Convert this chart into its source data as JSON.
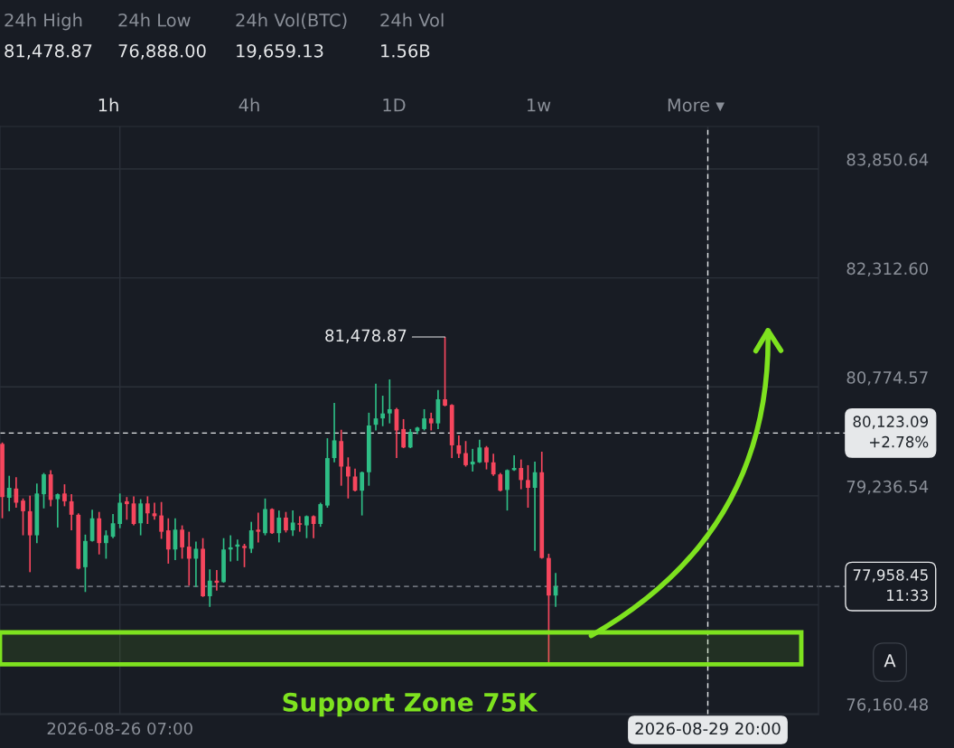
{
  "chart_data": {
    "type": "candlestick",
    "x": [
      "2026-08-25T14:00",
      "2026-08-25T15:00",
      "2026-08-25T16:00",
      "2026-08-25T17:00",
      "2026-08-25T18:00",
      "2026-08-25T19:00",
      "2026-08-25T20:00",
      "2026-08-25T21:00",
      "2026-08-25T22:00",
      "2026-08-25T23:00",
      "2026-08-26T00:00",
      "2026-08-26T01:00",
      "2026-08-26T02:00",
      "2026-08-26T03:00",
      "2026-08-26T04:00",
      "2026-08-26T05:00",
      "2026-08-26T06:00",
      "2026-08-26T07:00",
      "2026-08-26T08:00",
      "2026-08-26T09:00",
      "2026-08-26T10:00",
      "2026-08-26T11:00",
      "2026-08-26T12:00",
      "2026-08-26T13:00",
      "2026-08-26T14:00",
      "2026-08-26T15:00",
      "2026-08-26T16:00",
      "2026-08-26T17:00",
      "2026-08-26T18:00",
      "2026-08-26T19:00",
      "2026-08-26T20:00",
      "2026-08-26T21:00",
      "2026-08-26T22:00",
      "2026-08-26T23:00",
      "2026-08-27T00:00",
      "2026-08-27T01:00",
      "2026-08-27T02:00",
      "2026-08-27T03:00",
      "2026-08-27T04:00",
      "2026-08-27T05:00",
      "2026-08-27T06:00",
      "2026-08-27T07:00",
      "2026-08-27T08:00",
      "2026-08-27T09:00",
      "2026-08-27T10:00",
      "2026-08-27T11:00",
      "2026-08-27T12:00",
      "2026-08-27T13:00",
      "2026-08-27T14:00",
      "2026-08-27T15:00",
      "2026-08-27T16:00",
      "2026-08-27T17:00",
      "2026-08-27T18:00",
      "2026-08-27T19:00",
      "2026-08-27T20:00",
      "2026-08-27T21:00",
      "2026-08-27T22:00",
      "2026-08-27T23:00",
      "2026-08-28T00:00",
      "2026-08-28T01:00",
      "2026-08-28T02:00",
      "2026-08-28T03:00",
      "2026-08-28T04:00",
      "2026-08-28T05:00",
      "2026-08-28T06:00",
      "2026-08-28T07:00",
      "2026-08-28T08:00",
      "2026-08-28T09:00",
      "2026-08-28T10:00",
      "2026-08-28T11:00",
      "2026-08-28T12:00",
      "2026-08-28T13:00",
      "2026-08-28T14:00",
      "2026-08-28T15:00",
      "2026-08-28T16:00",
      "2026-08-28T17:00",
      "2026-08-28T18:00",
      "2026-08-28T19:00",
      "2026-08-28T20:00",
      "2026-08-28T21:00",
      "2026-08-28T22:00"
    ],
    "ohlc": [
      [
        79970,
        79990,
        78920,
        79220
      ],
      [
        79210,
        79520,
        79020,
        79350
      ],
      [
        79340,
        79500,
        79070,
        79140
      ],
      [
        79170,
        79200,
        78680,
        79020
      ],
      [
        79020,
        79240,
        78160,
        78680
      ],
      [
        78680,
        79410,
        78570,
        79270
      ],
      [
        79260,
        79560,
        79060,
        79540
      ],
      [
        79540,
        79600,
        79090,
        79180
      ],
      [
        79190,
        79270,
        78790,
        79260
      ],
      [
        79270,
        79400,
        79090,
        79160
      ],
      [
        79160,
        79260,
        78750,
        78970
      ],
      [
        78970,
        78990,
        78200,
        78210
      ],
      [
        78230,
        78690,
        77880,
        78600
      ],
      [
        78600,
        79040,
        78590,
        78920
      ],
      [
        78920,
        79010,
        78410,
        78570
      ],
      [
        78570,
        78750,
        78350,
        78680
      ],
      [
        78660,
        78980,
        78640,
        78850
      ],
      [
        78840,
        79270,
        78780,
        79140
      ],
      [
        79160,
        79220,
        78900,
        79120
      ],
      [
        79130,
        79230,
        78820,
        78840
      ],
      [
        78850,
        79190,
        78680,
        79130
      ],
      [
        79130,
        79230,
        78840,
        78990
      ],
      [
        78990,
        79140,
        78900,
        78950
      ],
      [
        78960,
        79150,
        78630,
        78730
      ],
      [
        78750,
        78920,
        78280,
        78480
      ],
      [
        78480,
        78920,
        78330,
        78760
      ],
      [
        78760,
        78820,
        78350,
        78510
      ],
      [
        78520,
        78730,
        77970,
        78350
      ],
      [
        78350,
        78590,
        77950,
        78490
      ],
      [
        78490,
        78640,
        77810,
        77820
      ],
      [
        77820,
        78200,
        77670,
        78040
      ],
      [
        78040,
        78190,
        77900,
        78010
      ],
      [
        78020,
        78640,
        78010,
        78480
      ],
      [
        78480,
        78680,
        78310,
        78510
      ],
      [
        78520,
        78620,
        78320,
        78550
      ],
      [
        78530,
        78560,
        78230,
        78500
      ],
      [
        78490,
        78870,
        78430,
        78750
      ],
      [
        78760,
        79000,
        78580,
        78730
      ],
      [
        78710,
        79200,
        78680,
        79050
      ],
      [
        79050,
        79060,
        78700,
        78710
      ],
      [
        78710,
        79030,
        78580,
        78930
      ],
      [
        78930,
        79010,
        78720,
        78750
      ],
      [
        78750,
        79030,
        78670,
        78860
      ],
      [
        78850,
        78950,
        78730,
        78830
      ],
      [
        78820,
        78960,
        78640,
        78950
      ],
      [
        78950,
        78960,
        78640,
        78840
      ],
      [
        78840,
        79140,
        78800,
        79120
      ],
      [
        79100,
        80050,
        79070,
        79770
      ],
      [
        79770,
        80550,
        79710,
        80020
      ],
      [
        80010,
        80170,
        79380,
        79650
      ],
      [
        79650,
        79780,
        79200,
        79510
      ],
      [
        79510,
        79620,
        79300,
        79310
      ],
      [
        79310,
        79580,
        78960,
        79570
      ],
      [
        79570,
        80410,
        79380,
        80230
      ],
      [
        80240,
        80820,
        80160,
        80330
      ],
      [
        80330,
        80650,
        80220,
        80400
      ],
      [
        80400,
        80880,
        80260,
        80460
      ],
      [
        80460,
        80480,
        79770,
        80160
      ],
      [
        80180,
        80320,
        79910,
        79920
      ],
      [
        79920,
        80180,
        79910,
        80140
      ],
      [
        80150,
        80210,
        80110,
        80200
      ],
      [
        80180,
        80460,
        80160,
        80330
      ],
      [
        80330,
        80410,
        80160,
        80260
      ],
      [
        80260,
        80730,
        80180,
        80600
      ],
      [
        80600,
        81478.87,
        80500,
        80510
      ],
      [
        80520,
        80530,
        79770,
        79950
      ],
      [
        79950,
        80090,
        79770,
        79830
      ],
      [
        79840,
        80010,
        79650,
        79670
      ],
      [
        79680,
        79900,
        79580,
        79720
      ],
      [
        79710,
        80030,
        79700,
        79920
      ],
      [
        79920,
        79940,
        79610,
        79710
      ],
      [
        79710,
        79830,
        79520,
        79540
      ],
      [
        79540,
        79560,
        79300,
        79310
      ],
      [
        79320,
        79610,
        79030,
        79600
      ],
      [
        79600,
        79810,
        79590,
        79630
      ],
      [
        79630,
        79750,
        79330,
        79460
      ],
      [
        79460,
        79670,
        79070,
        79350
      ],
      [
        79350,
        79720,
        78460,
        79570
      ],
      [
        79570,
        79860,
        78350,
        78360
      ],
      [
        78360,
        78420,
        76888,
        77830
      ],
      [
        77830,
        78150,
        77670,
        77958.45
      ]
    ],
    "colors": [
      "#f6465d",
      "#2ebd85",
      "#f6465d",
      "#f6465d",
      "#f6465d",
      "#2ebd85",
      "#2ebd85",
      "#f6465d",
      "#2ebd85",
      "#f6465d",
      "#f6465d",
      "#f6465d",
      "#2ebd85",
      "#2ebd85",
      "#f6465d",
      "#2ebd85",
      "#2ebd85",
      "#2ebd85",
      "#f6465d",
      "#f6465d",
      "#2ebd85",
      "#f6465d",
      "#f6465d",
      "#f6465d",
      "#f6465d",
      "#2ebd85",
      "#f6465d",
      "#f6465d",
      "#2ebd85",
      "#f6465d",
      "#2ebd85",
      "#f6465d",
      "#2ebd85",
      "#2ebd85",
      "#2ebd85",
      "#f6465d",
      "#2ebd85",
      "#f6465d",
      "#2ebd85",
      "#f6465d",
      "#2ebd85",
      "#f6465d",
      "#2ebd85",
      "#f6465d",
      "#2ebd85",
      "#f6465d",
      "#2ebd85",
      "#2ebd85",
      "#2ebd85",
      "#f6465d",
      "#f6465d",
      "#f6465d",
      "#2ebd85",
      "#2ebd85",
      "#2ebd85",
      "#2ebd85",
      "#2ebd85",
      "#f6465d",
      "#f6465d",
      "#2ebd85",
      "#2ebd85",
      "#2ebd85",
      "#f6465d",
      "#2ebd85",
      "#f6465d",
      "#f6465d",
      "#f6465d",
      "#f6465d",
      "#2ebd85",
      "#2ebd85",
      "#f6465d",
      "#f6465d",
      "#f6465d",
      "#2ebd85",
      "#2ebd85",
      "#f6465d",
      "#f6465d",
      "#2ebd85",
      "#f6465d",
      "#f6465d",
      "#2ebd85"
    ],
    "xlim": [
      "2026-08-25T13:40",
      "2026-08-30T12:00"
    ],
    "xticks": [
      {
        "value": "2026-08-26T07:00",
        "label": "2026-08-26 07:00"
      },
      {
        "value": "2026-08-29T20:00",
        "label": "2026-08-29 20:00"
      }
    ],
    "ylim": [
      76150,
      84450
    ],
    "yticks": [
      {
        "value": 76160.48,
        "label": "76,160.48"
      },
      {
        "value": 77698.51,
        "label": null
      },
      {
        "value": 79236.54,
        "label": "79,236.54"
      },
      {
        "value": 80774.57,
        "label": "80,774.57"
      },
      {
        "value": 82312.6,
        "label": "82,312.60"
      },
      {
        "value": 83850.64,
        "label": "83,850.64"
      }
    ],
    "grid": true,
    "ref_lines": [
      {
        "axis": "x",
        "value": "2026-08-29T20:00",
        "color": "#e6e8ea",
        "line_style": "dashed"
      },
      {
        "axis": "y",
        "value": 80123.09,
        "label": "80,123.09\n+2.78%",
        "color": "#e6e8ea",
        "line_style": "dashed"
      },
      {
        "axis": "y",
        "value": 77958.45,
        "label": "77,958.45\n11:33",
        "color": "#8a8f98",
        "line_style": "dashed"
      }
    ],
    "bands": [
      {
        "axis": "y",
        "from": 76860,
        "to": 77310,
        "label": "Support Zone 75K",
        "color": "#7ee21f"
      }
    ],
    "annotations": [
      "24h High",
      "81,478.87",
      "24h Low",
      "76,888.00",
      "24h Vol(BTC)",
      "19,659.13",
      "24h Vol",
      "1.56B",
      "1h",
      "4h",
      "1D",
      "1w",
      "More ▾",
      "A",
      {
        "text": "81,478.87",
        "x": "2026-08-28T06:00",
        "y": 81478.87
      }
    ]
  }
}
